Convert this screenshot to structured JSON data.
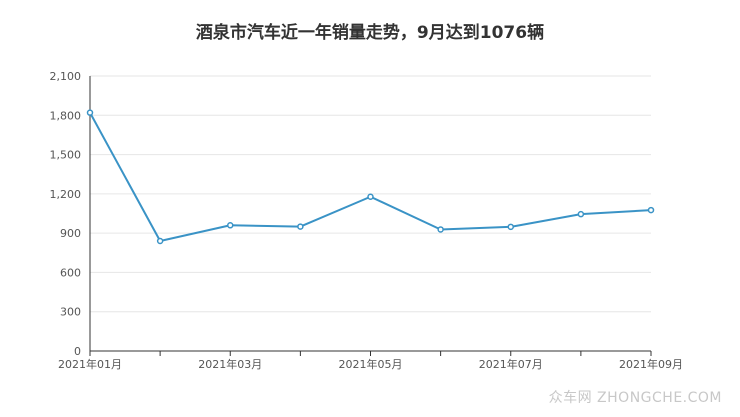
{
  "chart_data": {
    "type": "line",
    "title": "酒泉市汽车近一年销量走势，9月达到1076辆",
    "xlabel": "",
    "ylabel": "",
    "x": [
      "2021年01月",
      "2021年02月",
      "2021年03月",
      "2021年04月",
      "2021年05月",
      "2021年06月",
      "2021年07月",
      "2021年08月",
      "2021年09月"
    ],
    "x_tick_labels": [
      "2021年01月",
      "2021年03月",
      "2021年05月",
      "2021年07月",
      "2021年09月"
    ],
    "series": [
      {
        "values": [
          1820,
          840,
          960,
          950,
          1178,
          928,
          948,
          1045,
          1076
        ]
      }
    ],
    "ylim": [
      0,
      2100
    ],
    "y_ticks": [
      "0",
      "300",
      "600",
      "900",
      "1,200",
      "1,500",
      "1,800",
      "2,100"
    ],
    "grid": "horizontal",
    "colors": {
      "line": "#3a93c6",
      "grid": "#e6e6e6",
      "axis": "#333333"
    }
  },
  "watermark": "众车网  ZHONGCHE.COM"
}
